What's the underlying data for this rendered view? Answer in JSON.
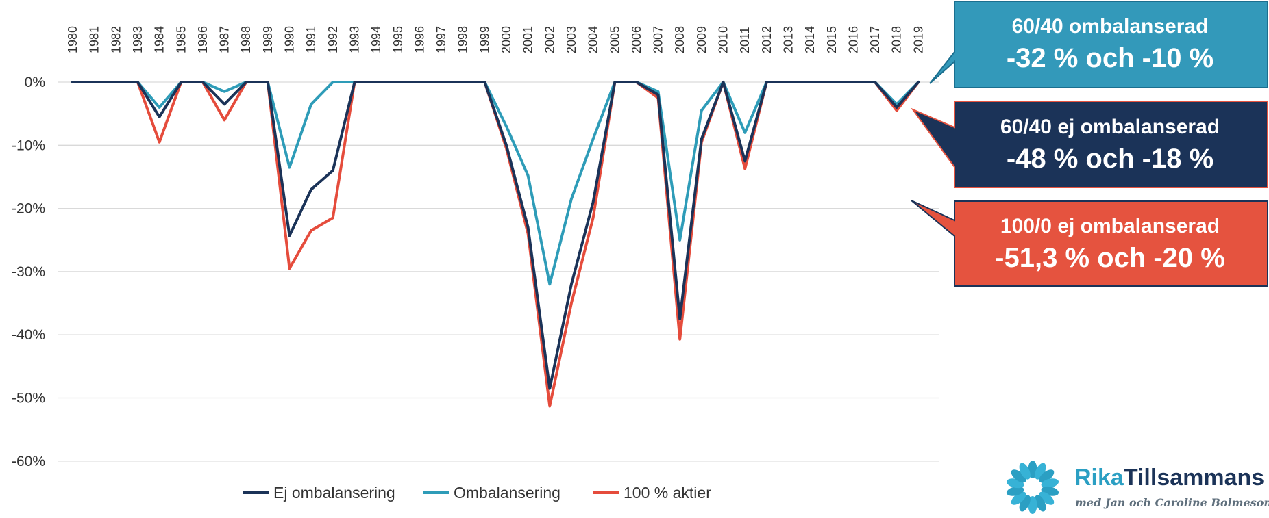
{
  "chart_data": {
    "type": "line",
    "categories": [
      "1980",
      "1981",
      "1982",
      "1983",
      "1984",
      "1985",
      "1986",
      "1987",
      "1988",
      "1989",
      "1990",
      "1991",
      "1992",
      "1993",
      "1994",
      "1995",
      "1996",
      "1997",
      "1998",
      "1999",
      "2000",
      "2001",
      "2002",
      "2003",
      "2004",
      "2005",
      "2006",
      "2007",
      "2008",
      "2009",
      "2010",
      "2011",
      "2012",
      "2013",
      "2014",
      "2015",
      "2016",
      "2017",
      "2018",
      "2019"
    ],
    "y_tick_labels": [
      "0%",
      "-10%",
      "-20%",
      "-30%",
      "-40%",
      "-50%",
      "-60%"
    ],
    "y_ticks": [
      0,
      -10,
      -20,
      -30,
      -40,
      -50,
      -60
    ],
    "ylim": [
      -60,
      0
    ],
    "grid": true,
    "legend_position": "bottom",
    "series": [
      {
        "name": "Ej ombalansering",
        "color": "#1b3358",
        "values": [
          0,
          0,
          0,
          0,
          -5.5,
          0,
          0,
          -3.5,
          0,
          0,
          -24.3,
          -17,
          -14,
          0,
          0,
          0,
          0,
          0,
          0,
          0,
          -10,
          -23,
          -48.5,
          -32,
          -19,
          0,
          0,
          -2,
          -37.5,
          -9,
          0,
          -12.5,
          0,
          0,
          0,
          0,
          0,
          0,
          -4,
          0
        ]
      },
      {
        "name": "Ombalansering",
        "color": "#2e9cb8",
        "values": [
          0,
          0,
          0,
          0,
          -4,
          0,
          0,
          -1.5,
          0,
          0,
          -13.5,
          -3.5,
          0,
          0,
          0,
          0,
          0,
          0,
          0,
          0,
          -7,
          -14.8,
          -32,
          -18.5,
          -9,
          0,
          0,
          -1.5,
          -25,
          -4.5,
          0,
          -8,
          0,
          0,
          0,
          0,
          0,
          0,
          -3.5,
          0
        ]
      },
      {
        "name": "100 % aktier",
        "color": "#e54c3c",
        "values": [
          0,
          0,
          0,
          0,
          -9.5,
          0,
          0,
          -6,
          0,
          0,
          -29.5,
          -23.5,
          -21.5,
          0,
          0,
          0,
          0,
          0,
          0,
          0,
          -10.5,
          -24,
          -51.3,
          -35,
          -21.5,
          0,
          0,
          -2.5,
          -40.7,
          -9.5,
          0,
          -13.7,
          0,
          0,
          0,
          0,
          0,
          0,
          -4.5,
          0
        ]
      }
    ],
    "annotations": [
      {
        "title": "60/40 ombalanserad",
        "value_text": "-32 % och -10 %",
        "color": "#3399ba"
      },
      {
        "title": "60/40 ej ombalanserad",
        "value_text": "-48 % och -18 %",
        "color": "#1b3358"
      },
      {
        "title": "100/0 ej ombalanserad",
        "value_text": "-51,3 % och -20 %",
        "color": "#e5533f"
      }
    ]
  },
  "brand": {
    "name_part1": "Rika",
    "name_part2": "Tillsammans",
    "tagline": "med Jan och Caroline Bolmeson",
    "color_primary": "#2b9fc3",
    "color_secondary": "#1b3358"
  }
}
